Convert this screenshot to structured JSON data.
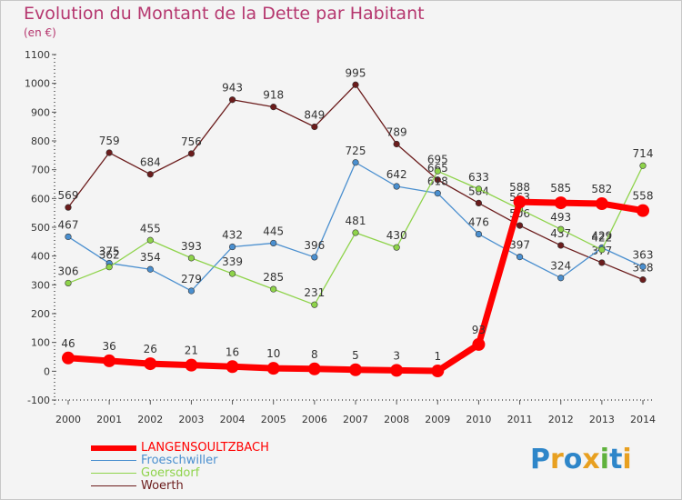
{
  "chart_data": {
    "type": "line",
    "title": "Evolution du Montant de la Dette par Habitant",
    "subtitle": "(en €)",
    "x": [
      "2000",
      "2001",
      "2002",
      "2003",
      "2004",
      "2005",
      "2006",
      "2007",
      "2008",
      "2009",
      "2010",
      "2011",
      "2012",
      "2013",
      "2014"
    ],
    "ylim": [
      -100,
      1100
    ],
    "yticks": [
      -100,
      0,
      100,
      200,
      300,
      400,
      500,
      600,
      700,
      800,
      900,
      1000,
      1100
    ],
    "grid": false,
    "legend_position": "bottom-left",
    "series": [
      {
        "name": "Woerth",
        "color": "#6b1c1c",
        "values": [
          569,
          759,
          684,
          756,
          943,
          918,
          849,
          995,
          789,
          665,
          584,
          506,
          437,
          377,
          318
        ]
      },
      {
        "name": "Froeschwiller",
        "color": "#4a8fcf",
        "values": [
          467,
          375,
          354,
          279,
          432,
          445,
          396,
          725,
          642,
          618,
          476,
          397,
          324,
          429,
          363
        ]
      },
      {
        "name": "Goersdorf",
        "color": "#8ed34a",
        "values": [
          306,
          362,
          455,
          393,
          339,
          285,
          231,
          481,
          430,
          695,
          633,
          563,
          493,
          422,
          714
        ]
      },
      {
        "name": "LANGENSOULTZBACH",
        "color": "#ff0000",
        "values": [
          46,
          36,
          26,
          21,
          16,
          10,
          8,
          5,
          3,
          1,
          93,
          588,
          585,
          582,
          558
        ]
      }
    ]
  },
  "legend": [
    {
      "label": "LANGENSOULTZBACH",
      "color": "#ff0000"
    },
    {
      "label": "Froeschwiller",
      "color": "#4a8fcf"
    },
    {
      "label": "Goersdorf",
      "color": "#8ed34a"
    },
    {
      "label": "Woerth",
      "color": "#6b1c1c"
    }
  ],
  "logo": {
    "letters": [
      "P",
      "r",
      "o",
      "x",
      "i",
      "t",
      "i"
    ],
    "colors": [
      "#2e86c9",
      "#e8a020",
      "#2e86c9",
      "#e8a020",
      "#5fb23c",
      "#2e86c9",
      "#e8a020"
    ]
  }
}
